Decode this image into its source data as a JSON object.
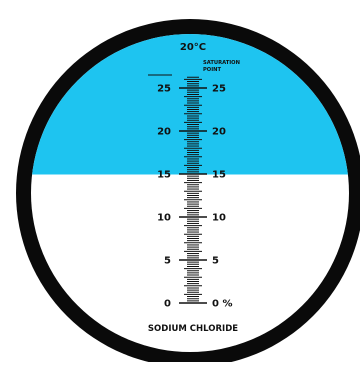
{
  "colors": {
    "background": "#ffffff",
    "ring": "#0a0a0a",
    "upper_field": "#1ec4f0",
    "lower_field": "#ffffff",
    "ink": "#111111"
  },
  "header": {
    "temperature": "20°C"
  },
  "scale": {
    "saturation_line1": "SATURATION",
    "saturation_line2": "POINT",
    "left_labels": [
      "25",
      "20",
      "15",
      "10",
      "5",
      "0"
    ],
    "right_labels": [
      "25",
      "20",
      "15",
      "10",
      "5",
      "0 %"
    ],
    "label_values": [
      25,
      20,
      15,
      10,
      5,
      0
    ],
    "min": 0,
    "max": 26.4,
    "minor_step": 0.5,
    "shadow_boundary_value": 15
  },
  "footer": {
    "title": "SODIUM CHLORIDE"
  }
}
